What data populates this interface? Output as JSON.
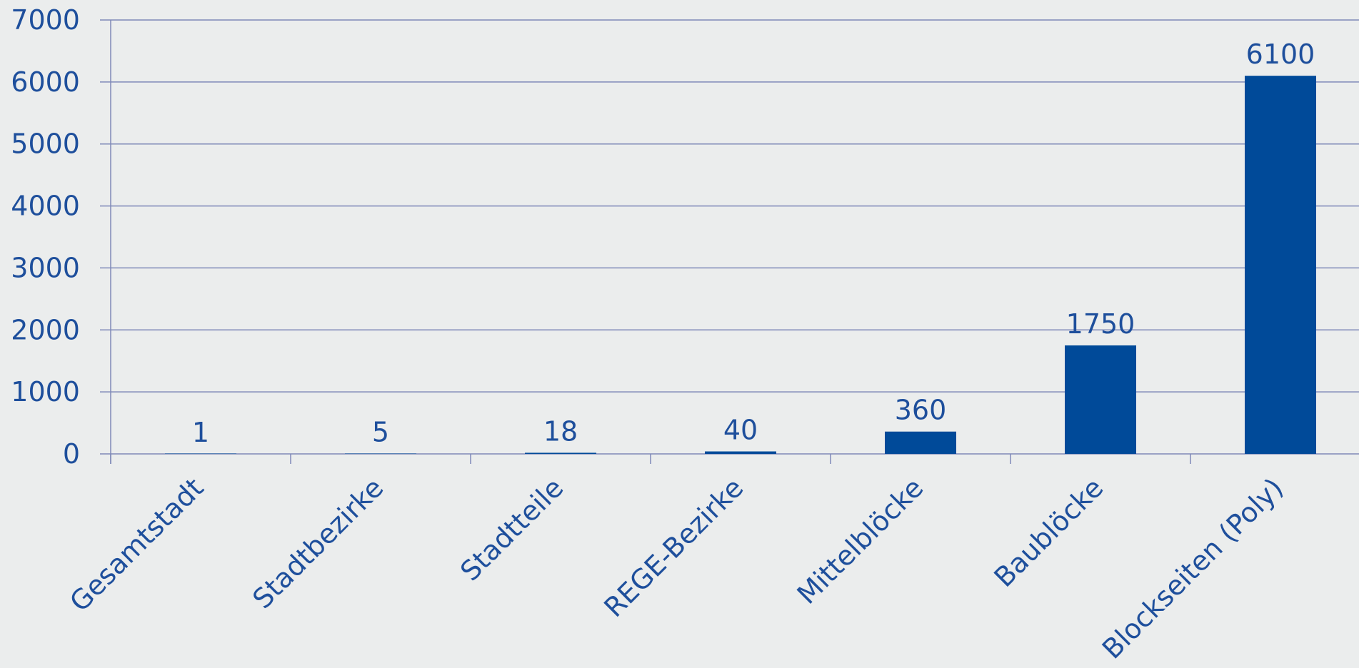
{
  "chart_data": {
    "type": "bar",
    "title": "",
    "xlabel": "",
    "ylabel": "",
    "categories": [
      "Gesamtstadt",
      "Stadtbezirke",
      "Stadtteile",
      "REGE-Bezirke",
      "Mittelblöcke",
      "Baublöcke",
      "Blockseiten (Poly)"
    ],
    "values": [
      1,
      5,
      18,
      40,
      360,
      1750,
      6100
    ],
    "data_labels": [
      "1",
      "5",
      "18",
      "40",
      "360",
      "1750",
      "6100"
    ],
    "ylim": [
      0,
      7000
    ],
    "yticks": [
      "0",
      "1000",
      "2000",
      "3000",
      "4000",
      "5000",
      "6000",
      "7000"
    ],
    "grid": true,
    "legend": "none",
    "colors": {
      "bar": "#004a99",
      "text": "#1e4f9c",
      "grid": "#7f89b8",
      "background": "#ebeded"
    }
  }
}
